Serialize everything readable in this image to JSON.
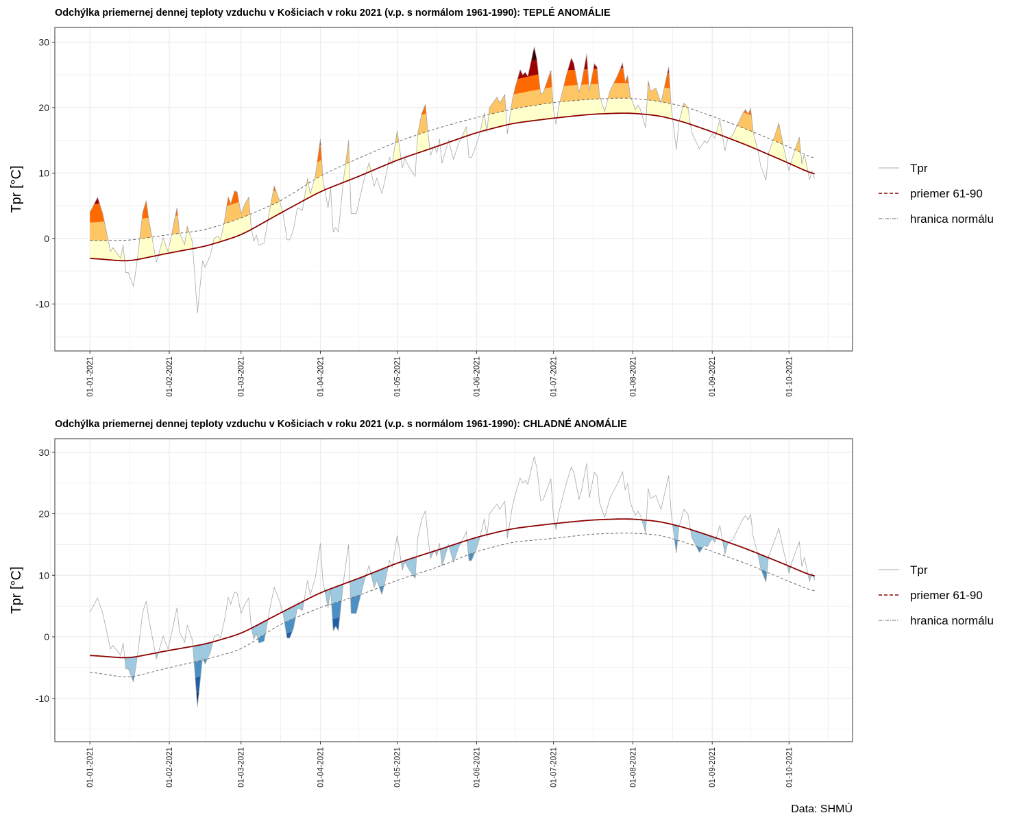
{
  "chart_data": [
    {
      "type": "area",
      "id": "warm",
      "title": "Odchýlka priemernej dennej teploty vzduchu v Košiciach v roku 2021 (v.p. s normálom 1961-1990): TEPLÉ ANOMÁLIE",
      "ylabel": "Tpr [°C]",
      "xlabel": "",
      "ylim": [
        -17,
        32
      ],
      "yticks": [
        -10,
        0,
        10,
        20,
        30
      ],
      "band_colors": [
        "#FFFFCC",
        "#FEC564",
        "#FF6A00",
        "#A00000",
        "#3A0000"
      ],
      "legend": [
        "Tpr",
        "priemer 61-90",
        "hranica normálu"
      ],
      "legend_position": "right"
    },
    {
      "type": "area",
      "id": "cold",
      "title": "Odchýlka priemernej dennej teploty vzduchu v Košiciach v roku 2021 (v.p. s normálom 1961-1990): CHLADNÉ ANOMÁLIE",
      "ylabel": "Tpr [°C]",
      "xlabel": "",
      "ylim": [
        -17,
        32
      ],
      "yticks": [
        -10,
        0,
        10,
        20,
        30
      ],
      "band_colors": [
        "#9ECAE1",
        "#4A90C4",
        "#1F5EA8",
        "#08306B"
      ],
      "legend": [
        "Tpr",
        "priemer 61-90",
        "hranica normálu"
      ],
      "legend_position": "right"
    }
  ],
  "x_axis": {
    "unit": "day of year 2021 (0 = 01-01-2021)",
    "xlim": [
      -13.7,
      297.8
    ],
    "tick_days": [
      0,
      31,
      59,
      90,
      120,
      151,
      181,
      212,
      243,
      273
    ],
    "tick_labels": [
      "01-01-2021",
      "01-02-2021",
      "01-03-2021",
      "01-04-2021",
      "01-05-2021",
      "01-06-2021",
      "01-07-2021",
      "01-08-2021",
      "01-09-2021",
      "01-10-2021"
    ]
  },
  "series": {
    "tpr": [
      [
        0,
        4
      ],
      [
        3,
        6.3
      ],
      [
        5,
        3.8
      ],
      [
        7,
        0
      ],
      [
        8,
        -2
      ],
      [
        9,
        -1.4
      ],
      [
        12,
        -3
      ],
      [
        13,
        -1
      ],
      [
        14,
        -5.2
      ],
      [
        15,
        -5.2
      ],
      [
        17,
        -7.3
      ],
      [
        18,
        -4.7
      ],
      [
        19,
        -1.6
      ],
      [
        20.6,
        4
      ],
      [
        22,
        5.8
      ],
      [
        23,
        2.9
      ],
      [
        26,
        -3.6
      ],
      [
        28.6,
        0.1
      ],
      [
        30.5,
        -2
      ],
      [
        32,
        0.8
      ],
      [
        34,
        4.7
      ],
      [
        35,
        0.8
      ],
      [
        37,
        -0.9
      ],
      [
        38,
        1.9
      ],
      [
        40,
        -0.5
      ],
      [
        42,
        -11.4
      ],
      [
        44,
        -3.4
      ],
      [
        45,
        -4.4
      ],
      [
        47,
        -2.6
      ],
      [
        48.5,
        0
      ],
      [
        50,
        0.4
      ],
      [
        51,
        -0.2
      ],
      [
        52.5,
        2.6
      ],
      [
        54,
        6.4
      ],
      [
        55,
        5.3
      ],
      [
        56.5,
        7.3
      ],
      [
        57.5,
        7.1
      ],
      [
        59,
        3.8
      ],
      [
        60.5,
        5.3
      ],
      [
        62,
        6.3
      ],
      [
        63,
        1.6
      ],
      [
        64,
        -0.4
      ],
      [
        65,
        0.5
      ],
      [
        66,
        -1
      ],
      [
        68,
        -0.7
      ],
      [
        70.7,
        5.5
      ],
      [
        72,
        8
      ],
      [
        74,
        5.9
      ],
      [
        75.5,
        3.6
      ],
      [
        77,
        -0.2
      ],
      [
        78,
        -0.2
      ],
      [
        79.5,
        1.4
      ],
      [
        81,
        4.7
      ],
      [
        83,
        4.3
      ],
      [
        85,
        9.2
      ],
      [
        86,
        6.8
      ],
      [
        88,
        9.5
      ],
      [
        90,
        15.2
      ],
      [
        91,
        9
      ],
      [
        93,
        4.7
      ],
      [
        94,
        7.6
      ],
      [
        95,
        1
      ],
      [
        96,
        1.7
      ],
      [
        97,
        1
      ],
      [
        99,
        8.9
      ],
      [
        101,
        15
      ],
      [
        102,
        3.8
      ],
      [
        104,
        3.8
      ],
      [
        107,
        8.9
      ],
      [
        109,
        11.6
      ],
      [
        111,
        8
      ],
      [
        112,
        9.2
      ],
      [
        114,
        6.9
      ],
      [
        115,
        8.5
      ],
      [
        117,
        12.4
      ],
      [
        118,
        11.3
      ],
      [
        120,
        16.5
      ],
      [
        122,
        10.8
      ],
      [
        123,
        12.2
      ],
      [
        124.5,
        11
      ],
      [
        127,
        9.5
      ],
      [
        128,
        16
      ],
      [
        129.5,
        19
      ],
      [
        131,
        20.5
      ],
      [
        132,
        16.2
      ],
      [
        133,
        12.7
      ],
      [
        134.5,
        14.2
      ],
      [
        135.5,
        13.1
      ],
      [
        136.5,
        15.2
      ],
      [
        137.5,
        11.5
      ],
      [
        140,
        15
      ],
      [
        142,
        12.1
      ],
      [
        144,
        14.6
      ],
      [
        145,
        15.3
      ],
      [
        147,
        17.1
      ],
      [
        148,
        12.4
      ],
      [
        149,
        12.4
      ],
      [
        150.5,
        13.9
      ],
      [
        151.5,
        15
      ],
      [
        152.5,
        16.5
      ],
      [
        154,
        19.2
      ],
      [
        155,
        16.2
      ],
      [
        156,
        20
      ],
      [
        159,
        21.6
      ],
      [
        160,
        20.7
      ],
      [
        162,
        22
      ],
      [
        163,
        16
      ],
      [
        165,
        21.3
      ],
      [
        166,
        23
      ],
      [
        168,
        25.8
      ],
      [
        169,
        25
      ],
      [
        170,
        25.4
      ],
      [
        171,
        24.8
      ],
      [
        173.5,
        29.3
      ],
      [
        174.5,
        27.4
      ],
      [
        176,
        22.1
      ],
      [
        177,
        22.3
      ],
      [
        180,
        25.7
      ],
      [
        181,
        19.7
      ],
      [
        182,
        17.4
      ],
      [
        183,
        20
      ],
      [
        186,
        24.9
      ],
      [
        188,
        27.6
      ],
      [
        189,
        26.7
      ],
      [
        191,
        22.3
      ],
      [
        192,
        23.9
      ],
      [
        194,
        28.2
      ],
      [
        195,
        22.6
      ],
      [
        197,
        26.7
      ],
      [
        198,
        26.2
      ],
      [
        199,
        21.8
      ],
      [
        201,
        19.4
      ],
      [
        203,
        22.5
      ],
      [
        206,
        24.9
      ],
      [
        208,
        26.8
      ],
      [
        209,
        23.9
      ],
      [
        210,
        24.9
      ],
      [
        211,
        21.8
      ],
      [
        213,
        19.7
      ],
      [
        214,
        20.4
      ],
      [
        215,
        19.7
      ],
      [
        217,
        16.9
      ],
      [
        218,
        24.1
      ],
      [
        219,
        22.5
      ],
      [
        221,
        23
      ],
      [
        223,
        20.7
      ],
      [
        226,
        26.2
      ],
      [
        227,
        20
      ],
      [
        229,
        13.6
      ],
      [
        230,
        17.8
      ],
      [
        232,
        20.7
      ],
      [
        233.5,
        20
      ],
      [
        235,
        16.2
      ],
      [
        238,
        13.7
      ],
      [
        240,
        14.9
      ],
      [
        241,
        14.6
      ],
      [
        243,
        16
      ],
      [
        244,
        15.3
      ],
      [
        246,
        18.1
      ],
      [
        248,
        13.4
      ],
      [
        249,
        15.1
      ],
      [
        251,
        15.8
      ],
      [
        255,
        19.2
      ],
      [
        256,
        19.7
      ],
      [
        257,
        19
      ],
      [
        258,
        19.9
      ],
      [
        259,
        16.3
      ],
      [
        261,
        13.1
      ],
      [
        262,
        11
      ],
      [
        264,
        8.9
      ],
      [
        265,
        13.1
      ],
      [
        267.5,
        15.8
      ],
      [
        269,
        17.6
      ],
      [
        271,
        13.7
      ],
      [
        273,
        10.3
      ],
      [
        274,
        12
      ],
      [
        277,
        15.5
      ],
      [
        278,
        11.4
      ],
      [
        279,
        12.9
      ],
      [
        281,
        9
      ],
      [
        282,
        10.3
      ],
      [
        283,
        9.2
      ]
    ],
    "normal_days": [
      0,
      15,
      31,
      45,
      59,
      74,
      90,
      105,
      120,
      135,
      151,
      165,
      181,
      196,
      210,
      222,
      232,
      243,
      257,
      273,
      283
    ],
    "normal": [
      -3,
      -3.5,
      -2.2,
      -1.2,
      0.5,
      3.8,
      7.2,
      9.5,
      12,
      14,
      16.2,
      17.6,
      18.4,
      19,
      19.2,
      18.8,
      17.8,
      16.3,
      14.2,
      11.5,
      9.7
    ],
    "upper_bound": [
      -0.3,
      -0.3,
      0.6,
      1.3,
      3.1,
      5.6,
      9.6,
      12.3,
      14.8,
      16.8,
      18.5,
      19.8,
      20.8,
      21.3,
      21.5,
      21,
      20.2,
      18.7,
      16.6,
      14,
      12.1
    ],
    "lower_bound": [
      -5.7,
      -6.7,
      -5,
      -3.7,
      -2.1,
      2.0,
      4.8,
      6.7,
      9.2,
      11.2,
      13.9,
      15.4,
      16,
      16.7,
      16.9,
      16.6,
      15.4,
      13.9,
      11.8,
      9,
      7.3
    ]
  },
  "colors": {
    "tpr": "#A8A8A8",
    "normal": "#8B0000",
    "bound": "#666666"
  },
  "source": "Data: SHMÚ"
}
